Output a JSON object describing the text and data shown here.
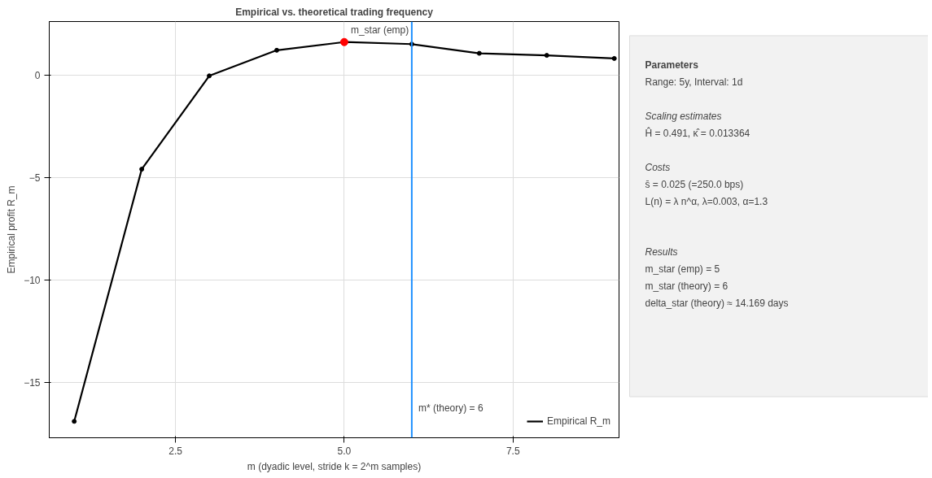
{
  "chart_data": [
    {
      "type": "line",
      "title": "Empirical vs. theoretical trading frequency",
      "xlabel": "m (dyadic level, stride k = 2^m samples)",
      "ylabel": "Empirical profit R_m",
      "x": [
        1,
        2,
        3,
        4,
        5,
        6,
        7,
        8,
        9
      ],
      "series": [
        {
          "name": "Empirical R_m",
          "color": "#000000",
          "values": [
            -16.9,
            -4.6,
            -0.05,
            1.2,
            1.6,
            1.5,
            1.05,
            0.95,
            0.8
          ]
        },
        {
          "type": "scatter",
          "color": "#ff0000",
          "x": [
            5
          ],
          "values": [
            1.6
          ]
        }
      ],
      "xlim": [
        0.63,
        9.07
      ],
      "ylim": [
        -17.7,
        2.6
      ],
      "xticks": [
        2.5,
        {
          "value": 5,
          "label": "5.0"
        },
        7.5
      ],
      "yticks": [
        {
          "value": -15,
          "label": "−15"
        },
        {
          "value": -10,
          "label": "−10"
        },
        {
          "value": -5,
          "label": "−5"
        },
        0
      ],
      "ref_lines": [
        {
          "axis": "x",
          "value": 6,
          "label": "m* (theory) = 6",
          "color": "#1e90ff"
        }
      ],
      "annotations": [
        {
          "text": "m_star (emp)",
          "x": 5,
          "y": 1.6
        }
      ],
      "grid": true,
      "legend": "bottom right",
      "marker": "circle",
      "line_style": "solid"
    },
    {
      "type": "other",
      "title": "Parameters",
      "annotations": [
        "Range: 5y, Interval: 1d",
        "Scaling estimates",
        "Ĥ = 0.491, κ̂ = 0.013364",
        "Costs",
        "s̄ = 0.025 (=250.0 bps)",
        "L(n) = λ n^α,  λ=0.003, α=1.3",
        "Results",
        "m_star (emp) = 5",
        "m_star (theory) = 6",
        "delta_star (theory) ≈ 14.169 days"
      ]
    }
  ]
}
